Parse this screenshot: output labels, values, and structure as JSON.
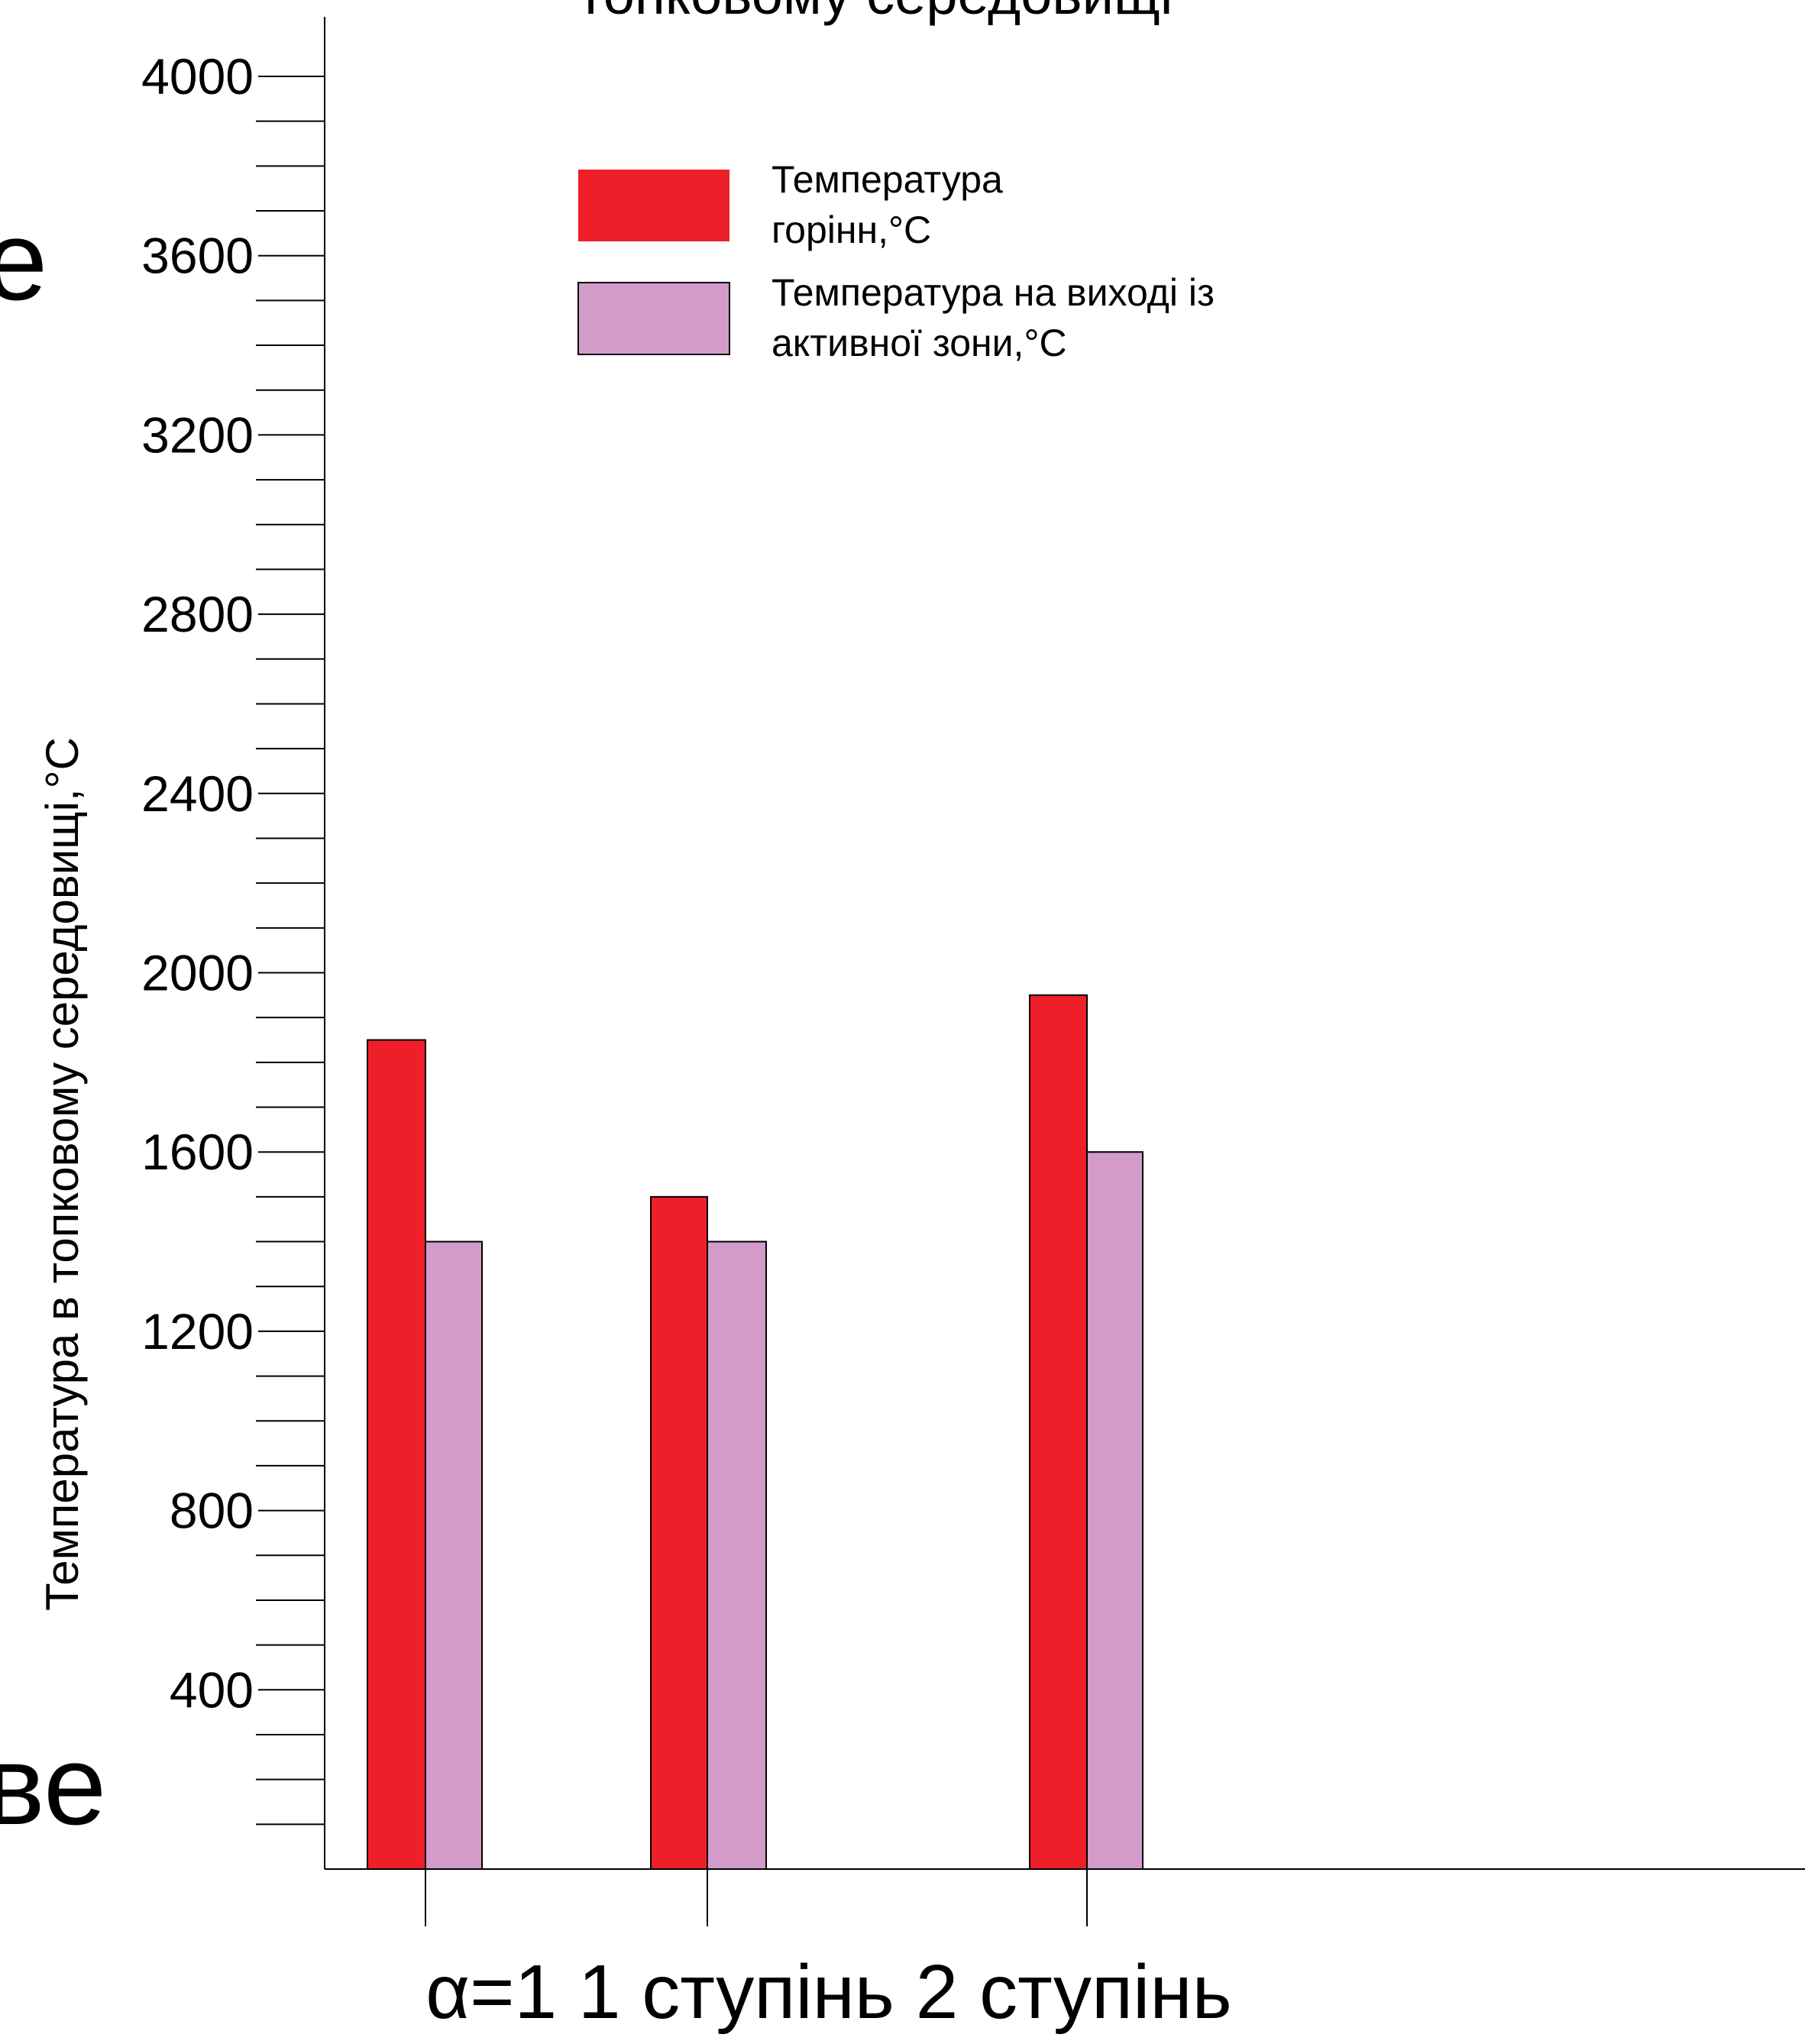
{
  "chart_data": {
    "type": "bar",
    "title_fragment": "топковому середовищі",
    "ylabel": "Температура в топковому середовищі,°C",
    "ylim": [
      0,
      4000
    ],
    "y_ticks": [
      400,
      800,
      1200,
      1600,
      2000,
      2400,
      2800,
      3200,
      3600,
      4000
    ],
    "y_minor_step": 100,
    "categories": [
      "α=1",
      "1 ступінь",
      "2 ступінь"
    ],
    "series": [
      {
        "name": "Температура горінн,°C",
        "color": "#ee1f29",
        "values": [
          1850,
          1500,
          1950
        ]
      },
      {
        "name": "Температура на виході із активної зони,°C",
        "color": "#d29bc9",
        "values": [
          1400,
          1400,
          1600
        ]
      }
    ],
    "legend": {
      "position": "top-left",
      "entries": [
        {
          "lines": [
            "Температура",
            "горінн,°C"
          ]
        },
        {
          "lines": [
            "Температура на виході із",
            "активної зони,°C"
          ]
        }
      ]
    },
    "grid": false
  },
  "background_text": {
    "top": "е",
    "bottom": "ве"
  }
}
